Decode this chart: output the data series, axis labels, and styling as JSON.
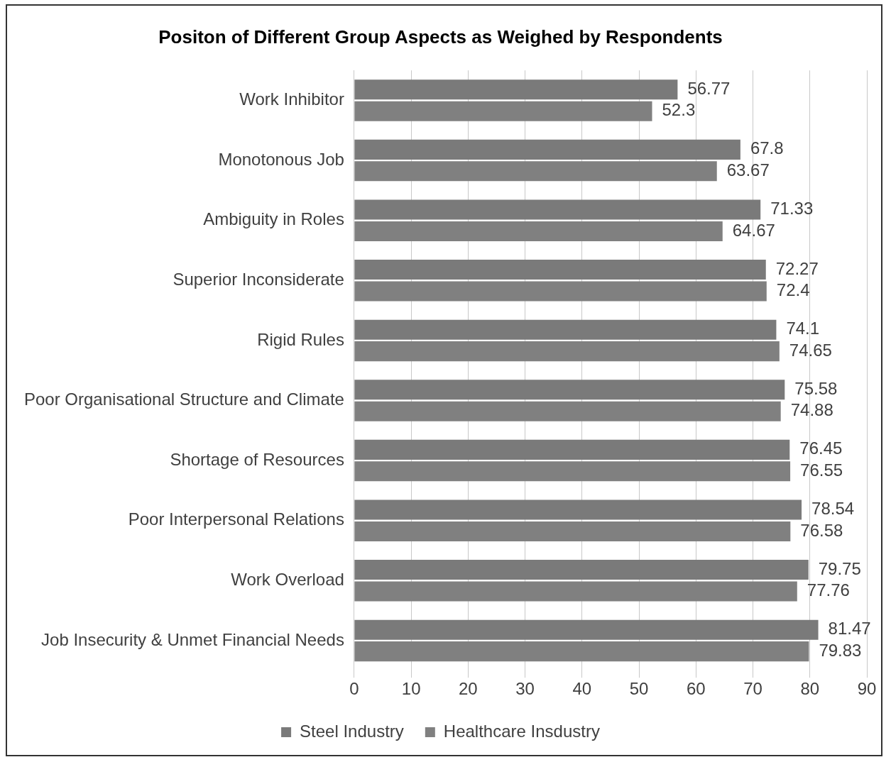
{
  "chart_data": {
    "type": "bar",
    "orientation": "horizontal",
    "title": "Positon of Different Group Aspects as Weighed by Respondents",
    "categories": [
      "Work Inhibitor",
      "Monotonous Job",
      "Ambiguity in Roles",
      "Superior Inconsiderate",
      "Rigid Rules",
      "Poor Organisational Structure and Climate",
      "Shortage of Resources",
      "Poor Interpersonal Relations",
      "Work Overload",
      "Job Insecurity & Unmet Financial Needs"
    ],
    "series": [
      {
        "name": "Steel Industry",
        "color": "#7a7a7a",
        "values": [
          56.77,
          67.8,
          71.33,
          72.27,
          74.1,
          75.58,
          76.45,
          78.54,
          79.75,
          81.47
        ]
      },
      {
        "name": "Healthcare Insdustry",
        "color": "#808080",
        "values": [
          52.3,
          63.67,
          64.67,
          72.4,
          74.65,
          74.88,
          76.55,
          76.58,
          77.76,
          79.83
        ]
      }
    ],
    "xlim": [
      0,
      90
    ],
    "xticks": [
      0,
      10,
      20,
      30,
      40,
      50,
      60,
      70,
      80,
      90
    ],
    "grid": "x",
    "legend": "bottom",
    "data_labels": true
  }
}
